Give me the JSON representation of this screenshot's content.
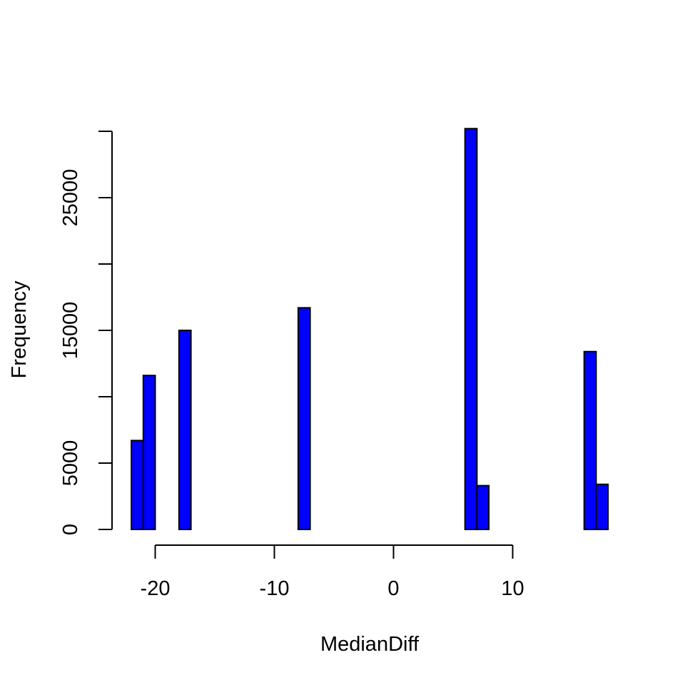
{
  "chart_data": {
    "type": "bar",
    "title": "",
    "xlabel": "MedianDiff",
    "ylabel": "Frequency",
    "bar_color": "#0000ff",
    "outline_color": "#000000",
    "grid": false,
    "bin_width": 1,
    "xlim": [
      -22,
      18
    ],
    "ylim": [
      0,
      30000
    ],
    "x_ticks": [
      -20,
      -10,
      0,
      10
    ],
    "x_tick_labels": [
      "-20",
      "-10",
      "0",
      "10"
    ],
    "y_ticks": [
      0,
      5000,
      10000,
      15000,
      20000,
      25000,
      30000
    ],
    "y_tick_labels": [
      "0",
      "5000",
      "",
      "15000",
      "",
      "25000",
      ""
    ],
    "bins": [
      {
        "start": -22,
        "end": -21,
        "count": 6700
      },
      {
        "start": -21,
        "end": -20,
        "count": 11600
      },
      {
        "start": -20,
        "end": -19,
        "count": 0
      },
      {
        "start": -19,
        "end": -18,
        "count": 0
      },
      {
        "start": -18,
        "end": -17,
        "count": 15000
      },
      {
        "start": -17,
        "end": -16,
        "count": 0
      },
      {
        "start": -16,
        "end": -15,
        "count": 0
      },
      {
        "start": -15,
        "end": -14,
        "count": 0
      },
      {
        "start": -14,
        "end": -13,
        "count": 0
      },
      {
        "start": -13,
        "end": -12,
        "count": 0
      },
      {
        "start": -12,
        "end": -11,
        "count": 0
      },
      {
        "start": -11,
        "end": -10,
        "count": 0
      },
      {
        "start": -10,
        "end": -9,
        "count": 0
      },
      {
        "start": -9,
        "end": -8,
        "count": 0
      },
      {
        "start": -8,
        "end": -7,
        "count": 16700
      },
      {
        "start": -7,
        "end": -6,
        "count": 0
      },
      {
        "start": -6,
        "end": -5,
        "count": 0
      },
      {
        "start": -5,
        "end": -4,
        "count": 0
      },
      {
        "start": -4,
        "end": -3,
        "count": 0
      },
      {
        "start": -3,
        "end": -2,
        "count": 0
      },
      {
        "start": -2,
        "end": -1,
        "count": 0
      },
      {
        "start": -1,
        "end": 0,
        "count": 0
      },
      {
        "start": 0,
        "end": 1,
        "count": 0
      },
      {
        "start": 1,
        "end": 2,
        "count": 0
      },
      {
        "start": 2,
        "end": 3,
        "count": 0
      },
      {
        "start": 3,
        "end": 4,
        "count": 0
      },
      {
        "start": 4,
        "end": 5,
        "count": 0
      },
      {
        "start": 5,
        "end": 6,
        "count": 0
      },
      {
        "start": 6,
        "end": 7,
        "count": 30200
      },
      {
        "start": 7,
        "end": 8,
        "count": 3300
      },
      {
        "start": 8,
        "end": 9,
        "count": 0
      },
      {
        "start": 9,
        "end": 10,
        "count": 0
      },
      {
        "start": 10,
        "end": 11,
        "count": 0
      },
      {
        "start": 11,
        "end": 12,
        "count": 0
      },
      {
        "start": 12,
        "end": 13,
        "count": 0
      },
      {
        "start": 13,
        "end": 14,
        "count": 0
      },
      {
        "start": 14,
        "end": 15,
        "count": 0
      },
      {
        "start": 15,
        "end": 16,
        "count": 0
      },
      {
        "start": 16,
        "end": 17,
        "count": 13400
      },
      {
        "start": 17,
        "end": 18,
        "count": 3400
      }
    ]
  }
}
